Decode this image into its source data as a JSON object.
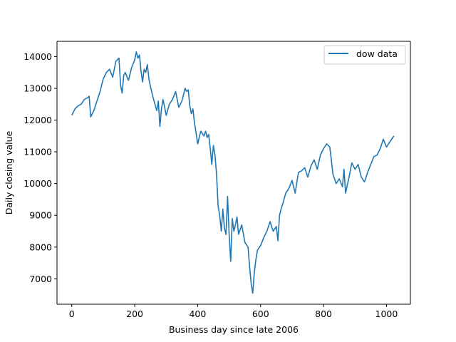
{
  "chart_data": {
    "type": "line",
    "title": "",
    "xlabel": "Business day since late 2006",
    "ylabel": "Daily closing value",
    "xlim": [
      -47,
      1076
    ],
    "ylim": [
      6200,
      14480
    ],
    "xticks": [
      0,
      200,
      400,
      600,
      800,
      1000
    ],
    "yticks": [
      7000,
      8000,
      9000,
      10000,
      11000,
      12000,
      13000,
      14000
    ],
    "xtick_labels": [
      "0",
      "200",
      "400",
      "600",
      "800",
      "1000"
    ],
    "ytick_labels": [
      "7000",
      "8000",
      "9000",
      "10000",
      "11000",
      "12000",
      "13000",
      "14000"
    ],
    "grid": false,
    "legend_position": "top-right",
    "series": [
      {
        "name": "dow data",
        "color": "#1f77b4",
        "x": [
          0,
          10,
          20,
          30,
          40,
          50,
          55,
          60,
          65,
          70,
          80,
          90,
          100,
          110,
          120,
          130,
          140,
          150,
          155,
          160,
          165,
          170,
          180,
          190,
          200,
          205,
          210,
          215,
          220,
          225,
          230,
          235,
          240,
          245,
          250,
          260,
          270,
          275,
          280,
          285,
          290,
          300,
          310,
          320,
          330,
          340,
          350,
          360,
          365,
          370,
          375,
          380,
          385,
          390,
          395,
          400,
          410,
          420,
          425,
          430,
          435,
          440,
          445,
          450,
          455,
          460,
          465,
          470,
          475,
          480,
          485,
          490,
          495,
          500,
          505,
          510,
          515,
          520,
          525,
          530,
          540,
          550,
          560,
          565,
          570,
          575,
          580,
          585,
          590,
          600,
          610,
          620,
          630,
          640,
          650,
          655,
          660,
          665,
          670,
          680,
          690,
          700,
          710,
          720,
          730,
          740,
          750,
          760,
          770,
          780,
          790,
          800,
          810,
          820,
          830,
          840,
          850,
          860,
          865,
          870,
          880,
          885,
          890,
          900,
          910,
          920,
          930,
          940,
          950,
          960,
          970,
          980,
          990,
          1000,
          1010,
          1020,
          1024
        ],
        "y": [
          12150,
          12350,
          12450,
          12500,
          12650,
          12700,
          12750,
          12100,
          12200,
          12300,
          12600,
          12900,
          13300,
          13500,
          13600,
          13350,
          13850,
          13950,
          13100,
          12850,
          13400,
          13500,
          13250,
          13650,
          13900,
          14150,
          13950,
          14050,
          13550,
          13200,
          13600,
          13500,
          13750,
          13300,
          13050,
          12650,
          12300,
          12600,
          11800,
          12350,
          12650,
          12150,
          12500,
          12650,
          12900,
          12400,
          12600,
          13000,
          12900,
          12950,
          12450,
          12200,
          12350,
          11900,
          11600,
          11250,
          11650,
          11500,
          11650,
          11450,
          11550,
          11100,
          10600,
          11200,
          10900,
          10300,
          9300,
          9000,
          8500,
          9200,
          8600,
          8400,
          9600,
          8400,
          7550,
          8900,
          8500,
          8700,
          8950,
          8400,
          8700,
          8150,
          8000,
          7400,
          6850,
          6550,
          7200,
          7600,
          7900,
          8050,
          8300,
          8500,
          8800,
          8500,
          8650,
          8200,
          9000,
          9200,
          9350,
          9700,
          9850,
          10100,
          9700,
          10350,
          10400,
          10500,
          10200,
          10550,
          10750,
          10450,
          10900,
          11100,
          11250,
          11150,
          10300,
          10000,
          10150,
          9900,
          10450,
          9700,
          10150,
          10400,
          10650,
          10450,
          10600,
          10200,
          10050,
          10350,
          10600,
          10850,
          10900,
          11100,
          11400,
          11150,
          11300,
          11450,
          11500
        ]
      }
    ]
  }
}
